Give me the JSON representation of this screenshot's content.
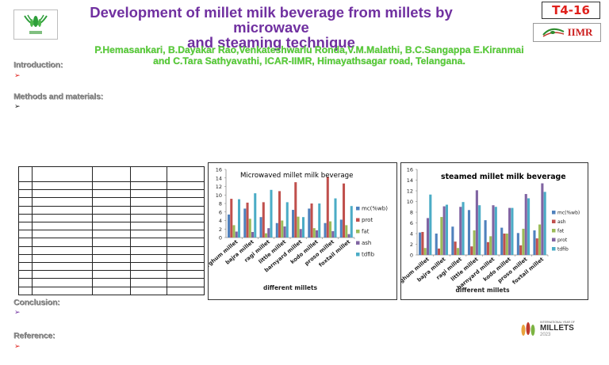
{
  "header": {
    "title": "Development of millet milk beverage from millets by microwave and steaming technique",
    "title_line1": "Development of millet milk beverage from millets by microwave",
    "title_line2": "and steaming technique",
    "badge": "T4-16",
    "authors_line1": "P.Hemasankari, B.Dayakar Rao,Venkateshwarlu Ronda,V.M.Malathi, B.C.Sangappa E.Kiranmai",
    "authors_line2": "and C.Tara Sathyavathi, ICAR-IIMR, Himayathsagar road, Telangana.",
    "logo_left_icon": "icar-wheat-logo",
    "logo_right_text": "IIMR",
    "colors": {
      "title": "#7030a0",
      "authors": "#5bd33b",
      "badge": "#e0201b"
    }
  },
  "sections": {
    "introduction": {
      "heading": "Introduction:",
      "bullet": "➢",
      "bullet_color": "#e0201b"
    },
    "methods": {
      "heading": "Methods and materials:",
      "bullet": "➢",
      "bullet_color": "#222222"
    },
    "conclusion": {
      "heading": "Conclusion:",
      "bullet": "➢",
      "bullet_color": "#7030a0"
    },
    "reference": {
      "heading": "Reference:",
      "bullet": "➢",
      "bullet_color": "#e0201b"
    }
  },
  "table": {
    "columns": 5,
    "rows": 15,
    "cells": []
  },
  "footer_logo": {
    "small_text": "INTERNATIONAL YEAR OF",
    "main_text": "MILLETS",
    "year": "2023"
  },
  "chart_data": [
    {
      "type": "bar",
      "title": "Microwaved millet milk beverage",
      "xlabel": "different millets",
      "ylabel": "",
      "ylim": [
        0,
        16
      ],
      "yticks": [
        0,
        2,
        4,
        6,
        8,
        10,
        12,
        14,
        16
      ],
      "legend_position": "right",
      "categories": [
        "sorghum millet",
        "bajra millet",
        "ragi millet",
        "little millet",
        "barnyard millet",
        "kodo millet",
        "proso millet",
        "foxtail millet"
      ],
      "series": [
        {
          "name": "mc(%wb)",
          "color": "#4f81bd",
          "values": [
            5.4,
            6.8,
            4.8,
            3.4,
            6.5,
            6.8,
            3.4,
            4.2
          ]
        },
        {
          "name": "prot",
          "color": "#c0504d",
          "values": [
            9.1,
            8.2,
            8.3,
            10.9,
            13.0,
            8.0,
            14.3,
            12.7
          ]
        },
        {
          "name": "fat",
          "color": "#9bbb59",
          "values": [
            2.9,
            4.4,
            1.0,
            4.0,
            4.9,
            2.2,
            3.8,
            2.9
          ]
        },
        {
          "name": "ash",
          "color": "#8064a2",
          "values": [
            1.4,
            1.3,
            2.2,
            2.6,
            2.0,
            1.7,
            1.5,
            0.8
          ]
        },
        {
          "name": "tdfib",
          "color": "#4bacc6",
          "values": [
            9.0,
            10.4,
            11.2,
            8.3,
            4.8,
            8.0,
            9.2,
            7.4
          ]
        }
      ]
    },
    {
      "type": "bar",
      "title": "steamed millet milk beverage",
      "xlabel": "different millets",
      "ylabel": "",
      "ylim": [
        0,
        16
      ],
      "yticks": [
        0,
        2,
        4,
        6,
        8,
        10,
        12,
        14,
        16
      ],
      "legend_position": "right",
      "categories": [
        "sorghum millet",
        "bajra millet",
        "ragi millet",
        "little millet",
        "barnyard millet",
        "kodo millet",
        "proso millet",
        "foxtail millet"
      ],
      "series": [
        {
          "name": "mc(%wb)",
          "color": "#4f81bd",
          "values": [
            4.2,
            4.0,
            5.3,
            8.4,
            6.5,
            5.1,
            4.1,
            4.6
          ]
        },
        {
          "name": "ash",
          "color": "#c0504d",
          "values": [
            4.3,
            1.2,
            2.5,
            1.6,
            2.4,
            4.0,
            1.8,
            3.1
          ]
        },
        {
          "name": "fat",
          "color": "#9bbb59",
          "values": [
            1.3,
            7.1,
            1.3,
            4.6,
            3.5,
            4.0,
            4.9,
            5.7
          ]
        },
        {
          "name": "prot",
          "color": "#8064a2",
          "values": [
            6.9,
            9.1,
            9.0,
            12.1,
            9.3,
            8.8,
            11.4,
            13.4
          ]
        },
        {
          "name": "tdfib",
          "color": "#4bacc6",
          "values": [
            11.3,
            9.4,
            9.9,
            9.3,
            9.0,
            8.8,
            10.6,
            11.8
          ]
        }
      ]
    }
  ]
}
